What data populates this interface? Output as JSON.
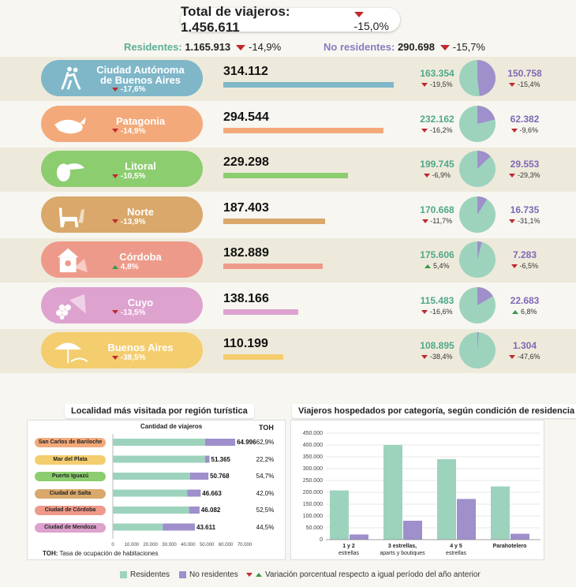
{
  "total": {
    "label": "Total de viajeros: 1.456.611",
    "change": "-15,0%"
  },
  "residents": {
    "label": "Residentes:",
    "value": "1.165.913",
    "change": "-14,9%"
  },
  "nonresidents": {
    "label": "No residentes:",
    "value": "290.698",
    "change": "-15,7%"
  },
  "colors": {
    "residents": "#9dd3bd",
    "nonresidents": "#9f8fcb",
    "down": "#c0282d",
    "up": "#3a9a4a"
  },
  "chart_data": [
    {
      "type": "bar",
      "title": "",
      "categories": [
        "Ciudad Autónoma de Buenos Aires",
        "Patagonia",
        "Litoral",
        "Norte",
        "Córdoba",
        "Cuyo",
        "Buenos Aires"
      ],
      "regions": [
        {
          "name_lines": [
            "Ciudad Autónoma",
            "de Buenos Aires"
          ],
          "change": "-17,6%",
          "dir": "down",
          "total": "314.112",
          "total_num": 314112,
          "residents": "163.354",
          "residents_num": 163354,
          "res_change": "-19,5%",
          "res_dir": "down",
          "nonresidents": "150.758",
          "nonresidents_num": 150758,
          "nres_change": "-15,4%",
          "nres_dir": "down",
          "color": "#7fb7c9",
          "icon": "tango-dancers-icon"
        },
        {
          "name_lines": [
            "Patagonia"
          ],
          "change": "-14,9%",
          "dir": "down",
          "total": "294.544",
          "total_num": 294544,
          "residents": "232.162",
          "residents_num": 232162,
          "res_change": "-16,2%",
          "res_dir": "down",
          "nonresidents": "62.382",
          "nonresidents_num": 62382,
          "nres_change": "-9,6%",
          "nres_dir": "down",
          "color": "#f3a97a",
          "icon": "whale-icon"
        },
        {
          "name_lines": [
            "Litoral"
          ],
          "change": "-10,5%",
          "dir": "down",
          "total": "229.298",
          "total_num": 229298,
          "residents": "199.745",
          "residents_num": 199745,
          "res_change": "-6,9%",
          "res_dir": "down",
          "nonresidents": "29.553",
          "nonresidents_num": 29553,
          "nres_change": "-29,3%",
          "nres_dir": "down",
          "color": "#8ccd6f",
          "icon": "toucan-icon"
        },
        {
          "name_lines": [
            "Norte"
          ],
          "change": "-13,9%",
          "dir": "down",
          "total": "187.403",
          "total_num": 187403,
          "residents": "170.668",
          "residents_num": 170668,
          "res_change": "-11,7%",
          "res_dir": "down",
          "nonresidents": "16.735",
          "nonresidents_num": 16735,
          "nres_change": "-31,1%",
          "nres_dir": "down",
          "color": "#d9a86a",
          "icon": "llama-icon"
        },
        {
          "name_lines": [
            "Córdoba"
          ],
          "change": "4,8%",
          "dir": "up",
          "total": "182.889",
          "total_num": 182889,
          "residents": "175.606",
          "residents_num": 175606,
          "res_change": "5,4%",
          "res_dir": "up",
          "nonresidents": "7.283",
          "nonresidents_num": 7283,
          "nres_change": "-6,5%",
          "nres_dir": "down",
          "color": "#ee9a8a",
          "icon": "birdhouse-icon"
        },
        {
          "name_lines": [
            "Cuyo"
          ],
          "change": "-13,5%",
          "dir": "down",
          "total": "138.166",
          "total_num": 138166,
          "residents": "115.483",
          "residents_num": 115483,
          "res_change": "-16,6%",
          "res_dir": "down",
          "nonresidents": "22.683",
          "nonresidents_num": 22683,
          "nres_change": "6,8%",
          "nres_dir": "up",
          "color": "#dea2cf",
          "icon": "grapes-icon"
        },
        {
          "name_lines": [
            "Buenos Aires"
          ],
          "change": "-38,5%",
          "dir": "down",
          "total": "110.199",
          "total_num": 110199,
          "residents": "108.895",
          "residents_num": 108895,
          "res_change": "-38,4%",
          "res_dir": "down",
          "nonresidents": "1.304",
          "nonresidents_num": 1304,
          "nres_change": "-47,6%",
          "nres_dir": "down",
          "color": "#f4cd6f",
          "icon": "beach-umbrella-icon"
        }
      ]
    },
    {
      "type": "bar",
      "title": "Localidad más visitada por región turística",
      "xlabel": "Cantidad de viajeros",
      "toh_header": "TOH",
      "xlim": [
        0,
        70000
      ],
      "xticks": [
        "0",
        "10.000",
        "20.000",
        "30.000",
        "40.000",
        "50.000",
        "60.000",
        "70.000"
      ],
      "categories": [
        "San Carlos de Bariloche",
        "Mar del Plata",
        "Puerto Iguazú",
        "Ciudad de Salta",
        "Ciudad de Córdoba",
        "Ciudad de Mendoza"
      ],
      "label_colors": [
        "#f3a97a",
        "#f4cd6f",
        "#8ccd6f",
        "#d9a86a",
        "#ee9a8a",
        "#dea2cf"
      ],
      "totals": [
        "64.996",
        "51.365",
        "50.768",
        "46.663",
        "46.082",
        "43.611"
      ],
      "series": [
        {
          "name": "Residentes",
          "values": [
            49000,
            49000,
            41000,
            39500,
            40500,
            26500
          ]
        },
        {
          "name": "No residentes",
          "values": [
            15996,
            2365,
            9768,
            7163,
            5582,
            17111
          ]
        }
      ],
      "toh": [
        "62,9%",
        "22,2%",
        "54,7%",
        "42,0%",
        "52,5%",
        "44,5%"
      ],
      "footnote_bold": "TOH:",
      "footnote": "Tasa de ocupación de habitaciones"
    },
    {
      "type": "bar",
      "title": "Viajeros hospedados por categoría, según condición de residencia",
      "ylim": [
        0,
        450000
      ],
      "yticks": [
        "0",
        "50.000",
        "100.000",
        "150.000",
        "200.000",
        "250.000",
        "300.000",
        "350.000",
        "400.000",
        "450.000"
      ],
      "categories": [
        [
          "1 y 2",
          "estrellas"
        ],
        [
          "3 estrellas,",
          "aparts y boutiques"
        ],
        [
          "4 y 5",
          "estrellas"
        ],
        [
          "Parahotelero"
        ]
      ],
      "series": [
        {
          "name": "Residentes",
          "values": [
            208000,
            400000,
            340000,
            225000
          ]
        },
        {
          "name": "No residentes",
          "values": [
            22000,
            80000,
            172000,
            25000
          ]
        }
      ]
    }
  ],
  "legend": {
    "residents": "Residentes",
    "nonresidents": "No residentes",
    "variation": "Variación porcentual respecto a igual período del año anterior"
  }
}
